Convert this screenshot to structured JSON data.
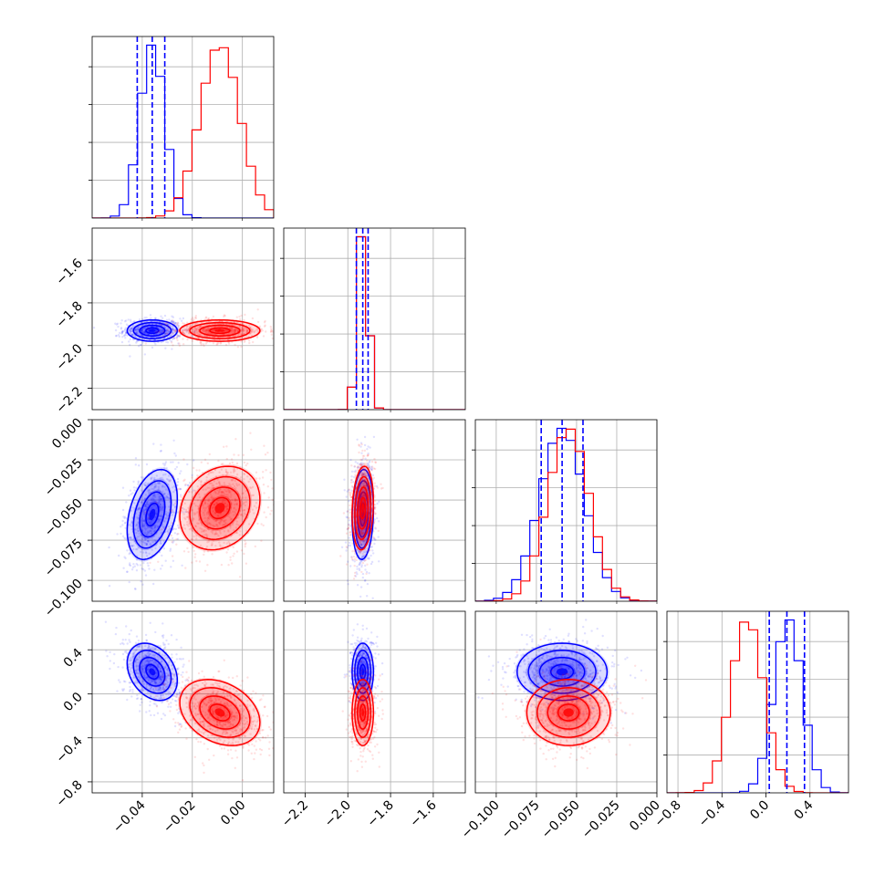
{
  "chart_data": {
    "type": "corner",
    "params": [
      {
        "range": [
          -0.06,
          0.0125
        ],
        "ticks": [
          -0.04,
          -0.02,
          0.0
        ],
        "tick_labels": [
          "−0.04",
          "−0.02",
          "0.00"
        ]
      },
      {
        "range": [
          -2.3,
          -1.45
        ],
        "ticks": [
          -2.2,
          -2.0,
          -1.8,
          -1.6
        ],
        "tick_labels": [
          "−2.2",
          "−2.0",
          "−1.8",
          "−1.6"
        ]
      },
      {
        "range": [
          -0.113,
          0.0
        ],
        "ticks": [
          -0.1,
          -0.075,
          -0.05,
          -0.025,
          0.0
        ],
        "tick_labels": [
          "−0.100",
          "−0.075",
          "−0.050",
          "−0.025",
          "0.000"
        ]
      },
      {
        "range": [
          -0.9,
          0.75
        ],
        "ticks": [
          -0.8,
          -0.4,
          0.0,
          0.4
        ],
        "tick_labels": [
          "−0.8",
          "−0.4",
          "0.0",
          "0.4"
        ]
      }
    ],
    "series": [
      {
        "color": "#0000ff",
        "mean": [
          -0.036,
          -1.93,
          -0.059,
          0.2
        ],
        "sd": [
          0.005,
          0.025,
          0.014,
          0.13
        ],
        "quantiles": [
          [
            -0.042,
            -0.036,
            -0.031
          ],
          [
            -1.96,
            -1.93,
            -1.905
          ],
          [
            -0.072,
            -0.059,
            -0.046
          ],
          [
            0.03,
            0.19,
            0.35
          ]
        ]
      },
      {
        "color": "#ff0000",
        "mean": [
          -0.009,
          -1.93,
          -0.055,
          -0.17
        ],
        "sd": [
          0.008,
          0.025,
          0.013,
          0.15
        ]
      }
    ],
    "correlations": [
      {
        "pair": [
          0,
          2
        ],
        "blue": 0.35,
        "red": 0.2
      },
      {
        "pair": [
          0,
          3
        ],
        "blue": -0.3,
        "red": -0.3
      },
      {
        "pair": [
          1,
          2
        ],
        "blue": 0.1,
        "red": 0.15
      },
      {
        "pair": [
          1,
          3
        ],
        "blue": 0.0,
        "red": 0.0
      },
      {
        "pair": [
          2,
          3
        ],
        "blue": 0.0,
        "red": 0.0
      }
    ],
    "grid": true,
    "colors": {
      "blue": "#0000ff",
      "red": "#ff0000",
      "grid": "#b0b0b0"
    }
  }
}
